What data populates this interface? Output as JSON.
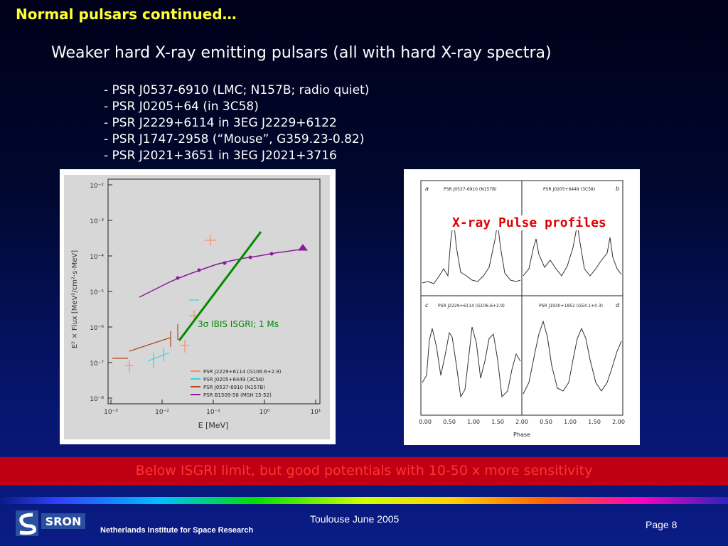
{
  "title": "Normal pulsars continued…",
  "subtitle": "Weaker hard X-ray emitting pulsars (all with hard X-ray spectra)",
  "bullets": [
    "- PSR J0537-6910 (LMC; N157B; radio quiet)",
    "- PSR J0205+64 (in 3C58)",
    "- PSR J2229+6114 in 3EG J2229+6122",
    "- PSR J1747-2958 (“Mouse”, G359.23-0.82)",
    "- PSR J2021+3651 in 3EG J2021+3716"
  ],
  "spectrum_figure": {
    "xlabel": "E [MeV]",
    "ylabel": "E² × Flux [MeV²/cm²·s·MeV]",
    "x_ticks": [
      "10⁻³",
      "10⁻²",
      "10⁻¹",
      "10⁰",
      "10¹"
    ],
    "y_ticks": [
      "10⁻²",
      "10⁻³",
      "10⁻⁴",
      "10⁻⁵",
      "10⁻⁶",
      "10⁻⁷",
      "10⁻⁸"
    ],
    "legend": [
      {
        "label": "PSR J2229+6114 (G106.6+2.9)",
        "color": "#ff8a6a"
      },
      {
        "label": "PSR J0205+6449 (3C58)",
        "color": "#33d6e0"
      },
      {
        "label": "PSR J0537-6910 (N157B)",
        "color": "#b04a1a"
      },
      {
        "label": "PSR B1509-58 (MSH 15-52)",
        "color": "#8a1a9a"
      }
    ],
    "sensitivity_label": "3σ IBIS ISGRI; 1 Ms",
    "sensitivity_color": "#008a00"
  },
  "profile_figure": {
    "caption": "X-ray Pulse profiles",
    "xlabel": "Phase",
    "x_ticks": [
      "0.00",
      "0.50",
      "1.00",
      "1.50",
      "2.00",
      "0.50",
      "1.00",
      "1.50",
      "2.00"
    ],
    "panels": [
      {
        "letter": "a",
        "name": "PSR J0537-6910 (N157B)"
      },
      {
        "letter": "b",
        "name": "PSR J0205+6449 (3C58)"
      },
      {
        "letter": "c",
        "name": "PSR J2229+6114 (G106.6+2.9)"
      },
      {
        "letter": "d",
        "name": "PSR J1930+1852 (G54.1+0.3)"
      }
    ]
  },
  "banner": "Below ISGRI limit, but good potentials with 10-50 x more sensitivity",
  "footer": {
    "date": "Toulouse June 2005",
    "page": "Page 8",
    "org": "Netherlands Institute for Space Research",
    "logo_text": "SRON"
  },
  "colors": {
    "title": "#ffff33",
    "banner_bg": "#c00012",
    "banner_text": "#ff3333",
    "profile_caption": "#e00000"
  }
}
